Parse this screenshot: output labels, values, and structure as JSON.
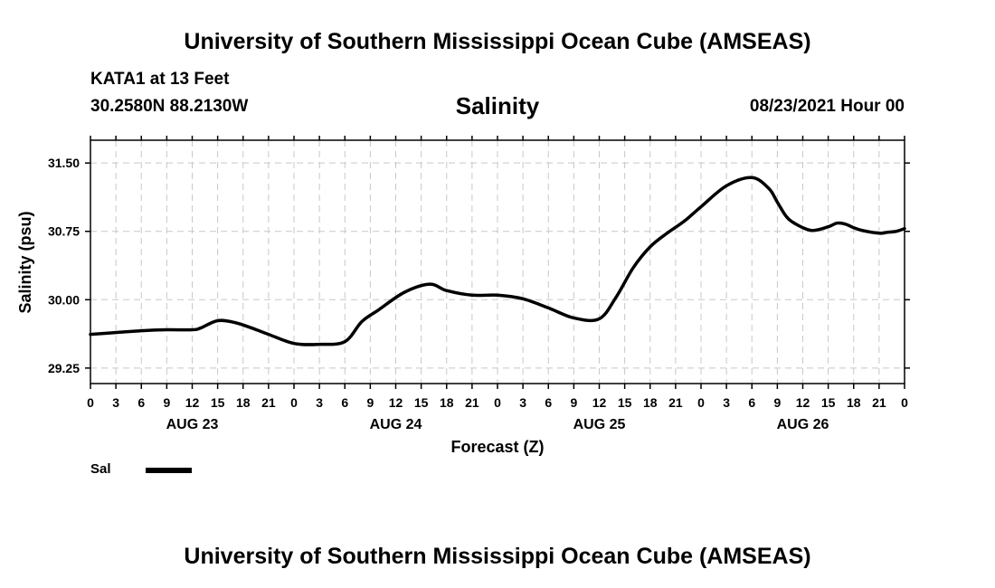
{
  "header": {
    "title": "University of Southern Mississippi Ocean Cube (AMSEAS)",
    "station": "KATA1 at 13 Feet",
    "coords": "30.2580N  88.2130W",
    "variable": "Salinity",
    "datetime": "08/23/2021 Hour 00"
  },
  "footer": {
    "title": "University of Southern Mississippi Ocean Cube (AMSEAS)"
  },
  "chart_data": {
    "type": "line",
    "title": "Salinity",
    "xlabel": "Forecast (Z)",
    "ylabel": "Salinity (psu)",
    "xlim": [
      0,
      96
    ],
    "ylim": [
      29.08,
      31.75
    ],
    "grid": true,
    "x_tick_step": 3,
    "x_tick_labels": [
      "0",
      "3",
      "6",
      "9",
      "12",
      "15",
      "18",
      "21",
      "0",
      "3",
      "6",
      "9",
      "12",
      "15",
      "18",
      "21",
      "0",
      "3",
      "6",
      "9",
      "12",
      "15",
      "18",
      "21",
      "0",
      "3",
      "6",
      "9",
      "12",
      "15",
      "18",
      "21",
      "0"
    ],
    "y_ticks": [
      29.25,
      30.0,
      30.75,
      31.5
    ],
    "y_tick_labels": [
      "29.25",
      "30.00",
      "30.75",
      "31.50"
    ],
    "date_labels": [
      {
        "x": 12,
        "label": "AUG 23"
      },
      {
        "x": 36,
        "label": "AUG 24"
      },
      {
        "x": 60,
        "label": "AUG 25"
      },
      {
        "x": 84,
        "label": "AUG 26"
      }
    ],
    "series": [
      {
        "name": "Sal",
        "color": "#000000",
        "x": [
          0,
          3,
          6,
          9,
          12,
          13,
          15,
          17,
          19,
          21,
          24,
          27,
          30,
          32,
          34,
          37,
          40,
          42,
          45,
          48,
          51,
          54,
          57,
          60,
          62,
          64,
          66,
          68,
          70,
          72,
          75,
          78,
          80,
          81,
          82,
          83,
          85,
          87,
          88,
          89,
          90,
          91,
          93,
          94,
          95,
          96
        ],
        "y": [
          29.62,
          29.64,
          29.66,
          29.67,
          29.67,
          29.69,
          29.77,
          29.75,
          29.69,
          29.62,
          29.52,
          29.51,
          29.54,
          29.76,
          29.89,
          30.08,
          30.17,
          30.1,
          30.05,
          30.05,
          30.01,
          29.91,
          29.8,
          29.79,
          30.03,
          30.35,
          30.58,
          30.73,
          30.86,
          31.02,
          31.25,
          31.34,
          31.22,
          31.07,
          30.92,
          30.84,
          30.76,
          30.8,
          30.84,
          30.83,
          30.79,
          30.76,
          30.73,
          30.74,
          30.75,
          30.78
        ]
      }
    ]
  },
  "legend": {
    "label": "Sal"
  }
}
